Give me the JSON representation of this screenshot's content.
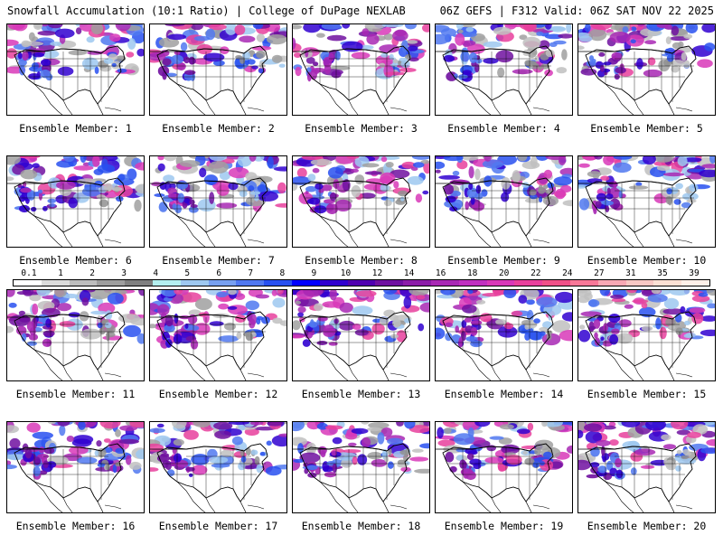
{
  "header": {
    "left_title": "Snowfall Accumulation (10:1 Ratio) | College of DuPage NEXLAB",
    "right_title": "06Z GEFS | F312 Valid: 06Z SAT NOV 22 2025"
  },
  "panels": [
    {
      "label": "Ensemble Member: 1"
    },
    {
      "label": "Ensemble Member: 2"
    },
    {
      "label": "Ensemble Member: 3"
    },
    {
      "label": "Ensemble Member: 4"
    },
    {
      "label": "Ensemble Member: 5"
    },
    {
      "label": "Ensemble Member: 6"
    },
    {
      "label": "Ensemble Member: 7"
    },
    {
      "label": "Ensemble Member: 8"
    },
    {
      "label": "Ensemble Member: 9"
    },
    {
      "label": "Ensemble Member: 10"
    },
    {
      "label": "Ensemble Member: 11"
    },
    {
      "label": "Ensemble Member: 12"
    },
    {
      "label": "Ensemble Member: 13"
    },
    {
      "label": "Ensemble Member: 14"
    },
    {
      "label": "Ensemble Member: 15"
    },
    {
      "label": "Ensemble Member: 16"
    },
    {
      "label": "Ensemble Member: 17"
    },
    {
      "label": "Ensemble Member: 18"
    },
    {
      "label": "Ensemble Member: 19"
    },
    {
      "label": "Ensemble Member: 20"
    }
  ],
  "legend": {
    "labels": [
      "0.1",
      "1",
      "2",
      "3",
      "4",
      "5",
      "6",
      "7",
      "8",
      "9",
      "10",
      "12",
      "14",
      "16",
      "18",
      "20",
      "22",
      "24",
      "27",
      "31",
      "35",
      "39"
    ],
    "colors": [
      "#ffffff",
      "#dcdcdc",
      "#bdbdbd",
      "#9e9e9e",
      "#808080",
      "#b4f0f0",
      "#9ec8f0",
      "#78a0f0",
      "#5078f0",
      "#2850f0",
      "#0000ff",
      "#3000d0",
      "#5000b0",
      "#7010a0",
      "#8c1ca8",
      "#a828b4",
      "#c030c0",
      "#d838b8",
      "#e8409c",
      "#f05088",
      "#f87898",
      "#f8a8b4",
      "#f8c8c4",
      "#fce0d4",
      "#fff0e8"
    ]
  }
}
